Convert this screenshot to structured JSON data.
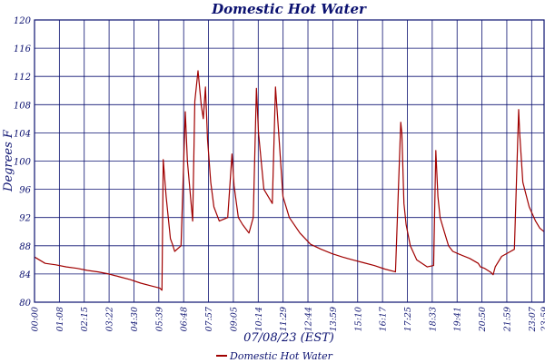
{
  "chart_data": {
    "type": "line",
    "title": "Domestic Hot Water",
    "xlabel": "07/08/23 (EST)",
    "ylabel": "Degrees F",
    "ylim": [
      80,
      120
    ],
    "yticks": [
      80,
      84,
      88,
      92,
      96,
      100,
      104,
      108,
      112,
      116,
      120
    ],
    "xlim_hours": [
      0,
      24
    ],
    "xtick_labels": [
      "00:00",
      "01:08",
      "02:15",
      "03:22",
      "04:30",
      "05:39",
      "06:48",
      "07:57",
      "09:05",
      "10:14",
      "11:29",
      "12:44",
      "13:59",
      "15:10",
      "16:17",
      "17:25",
      "18:33",
      "19:41",
      "20:50",
      "21:59",
      "23:07",
      "23:59"
    ],
    "grid": true,
    "legend_position": "bottom-center",
    "series": [
      {
        "name": "Domestic Hot Water",
        "color": "#a00000",
        "x": [
          0.0,
          0.5,
          1.0,
          1.5,
          2.0,
          2.5,
          3.0,
          3.5,
          4.0,
          4.5,
          5.0,
          5.5,
          5.9,
          6.0,
          6.06,
          6.2,
          6.4,
          6.5,
          6.6,
          6.9,
          7.1,
          7.2,
          7.45,
          7.55,
          7.7,
          7.85,
          7.95,
          8.05,
          8.15,
          8.2,
          8.3,
          8.45,
          8.7,
          9.1,
          9.3,
          9.4,
          9.6,
          9.8,
          10.1,
          10.3,
          10.45,
          10.55,
          10.8,
          11.2,
          11.35,
          11.5,
          11.7,
          12.0,
          12.5,
          13.0,
          13.5,
          14.0,
          14.5,
          15.0,
          15.5,
          16.0,
          16.5,
          17.0,
          17.25,
          17.3,
          17.4,
          17.5,
          17.7,
          18.0,
          18.5,
          18.8,
          18.9,
          19.0,
          19.1,
          19.3,
          19.5,
          19.7,
          20.0,
          20.5,
          20.9,
          21.0,
          21.2,
          21.5,
          21.6,
          21.7,
          22.0,
          22.3,
          22.6,
          22.8,
          22.85,
          23.0,
          23.3,
          23.6,
          23.8,
          24.0
        ],
        "y": [
          86.4,
          85.5,
          85.3,
          85.0,
          84.8,
          84.5,
          84.3,
          84.0,
          83.6,
          83.2,
          82.7,
          82.3,
          82.0,
          81.7,
          100.2,
          95.0,
          89.0,
          88.2,
          87.2,
          88.0,
          107.0,
          100.0,
          91.5,
          108.5,
          112.8,
          108.0,
          106.0,
          110.5,
          103.0,
          101.0,
          97.0,
          93.5,
          91.5,
          92.0,
          101.0,
          96.5,
          92.0,
          91.0,
          89.8,
          92.0,
          110.3,
          104.0,
          96.0,
          94.0,
          110.5,
          104.0,
          95.0,
          92.0,
          89.8,
          88.2,
          87.5,
          86.9,
          86.4,
          86.0,
          85.6,
          85.2,
          84.7,
          84.3,
          105.5,
          104.0,
          94.0,
          91.0,
          88.0,
          86.0,
          85.0,
          85.2,
          101.5,
          95.0,
          92.0,
          90.0,
          88.0,
          87.2,
          86.8,
          86.2,
          85.5,
          85.0,
          84.8,
          84.2,
          83.9,
          85.0,
          86.5,
          87.0,
          87.5,
          107.3,
          104.0,
          97.0,
          93.5,
          91.5,
          90.5,
          90.0
        ]
      }
    ]
  }
}
